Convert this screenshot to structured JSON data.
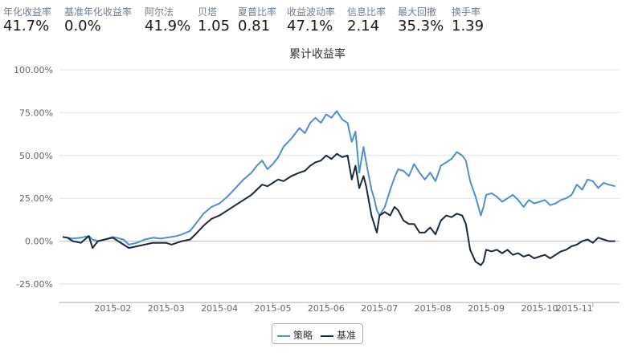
{
  "metrics": [
    {
      "label": "年化收益率",
      "value": "41.7%"
    },
    {
      "label": "基准年化收益率",
      "value": "0.0%"
    },
    {
      "label": "阿尔法",
      "value": "41.9%"
    },
    {
      "label": "贝塔",
      "value": "1.05"
    },
    {
      "label": "夏普比率",
      "value": "0.81"
    },
    {
      "label": "收益波动率",
      "value": "47.1%"
    },
    {
      "label": "信息比率",
      "value": "2.14"
    },
    {
      "label": "最大回撤",
      "value": "35.3%"
    },
    {
      "label": "换手率",
      "value": "1.39"
    }
  ],
  "chart_data": {
    "type": "line",
    "title": "累计收益率",
    "xlabel": "",
    "ylabel": "",
    "ylim": [
      -25,
      100
    ],
    "y_ticks": [
      "100.00%",
      "75.00%",
      "50.00%",
      "25.00%",
      "0.00%",
      "-25.00%"
    ],
    "y_tick_values": [
      100,
      75,
      50,
      25,
      0,
      -25
    ],
    "x_ticks": [
      "2015-02",
      "2015-03",
      "2015-04",
      "2015-05",
      "2015-06",
      "2015-07",
      "2015-08",
      "2015-09",
      "2015-10",
      "2015-11"
    ],
    "x_tick_values": [
      1,
      2,
      3,
      4,
      5,
      6,
      7,
      8,
      9,
      10
    ],
    "xlim": [
      0,
      10.5
    ],
    "grid": "horizontal",
    "legend_position": "bottom-center",
    "series": [
      {
        "name": "策略",
        "color": "#4f8fcf",
        "x": [
          0.06,
          0.15,
          0.25,
          0.4,
          0.55,
          0.62,
          0.72,
          0.85,
          1.0,
          1.2,
          1.3,
          1.45,
          1.6,
          1.75,
          1.9,
          2.0,
          2.1,
          2.2,
          2.3,
          2.45,
          2.55,
          2.7,
          2.85,
          3.0,
          3.15,
          3.3,
          3.45,
          3.6,
          3.7,
          3.8,
          3.9,
          4.0,
          4.1,
          4.2,
          4.35,
          4.5,
          4.6,
          4.7,
          4.8,
          4.9,
          5.0,
          5.1,
          5.2,
          5.3,
          5.4,
          5.48,
          5.55,
          5.62,
          5.7,
          5.75,
          5.85,
          5.9,
          5.95,
          6.0,
          6.1,
          6.2,
          6.28,
          6.35,
          6.45,
          6.55,
          6.65,
          6.75,
          6.85,
          6.95,
          7.05,
          7.15,
          7.25,
          7.35,
          7.45,
          7.55,
          7.62,
          7.7,
          7.8,
          7.9,
          7.95,
          8.0,
          8.1,
          8.2,
          8.3,
          8.4,
          8.5,
          8.6,
          8.7,
          8.8,
          8.9,
          9.0,
          9.1,
          9.2,
          9.3,
          9.4,
          9.5,
          9.6,
          9.7,
          9.8,
          9.9,
          10.0,
          10.1,
          10.2,
          10.3,
          10.42
        ],
        "values": [
          2.5,
          2,
          1.5,
          2,
          3,
          1,
          0,
          1,
          2.5,
          1,
          -2,
          -1,
          1,
          2,
          1.5,
          2,
          2.5,
          3,
          4,
          6,
          10,
          16,
          20,
          22,
          26,
          31,
          36,
          40,
          44,
          47,
          42,
          45,
          49,
          55,
          60,
          66,
          63,
          69,
          72,
          69,
          74,
          72,
          76,
          71,
          69,
          58,
          64,
          40,
          55,
          46,
          30,
          25,
          18,
          15,
          20,
          30,
          37,
          42,
          41,
          38,
          45,
          40,
          36,
          40,
          35,
          44,
          46,
          48,
          52,
          50,
          47,
          35,
          26,
          15,
          20,
          27,
          28,
          26,
          23,
          25,
          27,
          24,
          20,
          24,
          22,
          23,
          24,
          21,
          22,
          24,
          25,
          27,
          33,
          30,
          36,
          35,
          31,
          34,
          33,
          32
        ]
      },
      {
        "name": "基准",
        "color": "#1a2a3a",
        "x": [
          0.06,
          0.15,
          0.25,
          0.4,
          0.55,
          0.62,
          0.72,
          0.85,
          1.0,
          1.2,
          1.3,
          1.45,
          1.6,
          1.75,
          1.9,
          2.0,
          2.1,
          2.2,
          2.3,
          2.45,
          2.55,
          2.7,
          2.85,
          3.0,
          3.15,
          3.3,
          3.45,
          3.6,
          3.7,
          3.8,
          3.9,
          4.0,
          4.1,
          4.2,
          4.35,
          4.5,
          4.6,
          4.7,
          4.8,
          4.9,
          5.0,
          5.1,
          5.2,
          5.3,
          5.4,
          5.48,
          5.55,
          5.62,
          5.7,
          5.75,
          5.85,
          5.9,
          5.95,
          6.0,
          6.1,
          6.2,
          6.28,
          6.35,
          6.45,
          6.55,
          6.65,
          6.75,
          6.85,
          6.95,
          7.05,
          7.15,
          7.25,
          7.35,
          7.45,
          7.55,
          7.62,
          7.7,
          7.8,
          7.9,
          7.95,
          8.0,
          8.1,
          8.2,
          8.3,
          8.4,
          8.5,
          8.6,
          8.7,
          8.8,
          8.9,
          9.0,
          9.1,
          9.2,
          9.3,
          9.4,
          9.5,
          9.6,
          9.7,
          9.8,
          9.9,
          10.0,
          10.1,
          10.2,
          10.3,
          10.42
        ],
        "values": [
          2.5,
          2,
          0,
          -1,
          3,
          -4,
          0,
          1,
          2,
          -2,
          -4,
          -3,
          -2,
          -1,
          -1,
          -1,
          -2,
          -1,
          0,
          1,
          4,
          9,
          13,
          15,
          18,
          21,
          24,
          27,
          30,
          33,
          32,
          34,
          36,
          35,
          38,
          40,
          41,
          44,
          46,
          47,
          50,
          48,
          51,
          49,
          50,
          36,
          44,
          31,
          38,
          32,
          15,
          10,
          5,
          15,
          17,
          15,
          20,
          18,
          12,
          10,
          10,
          5,
          5,
          8,
          4,
          12,
          15,
          14,
          16,
          15,
          10,
          -5,
          -12,
          -14,
          -12,
          -5,
          -6,
          -5,
          -7,
          -5,
          -8,
          -7,
          -9,
          -8,
          -10,
          -9,
          -8,
          -10,
          -8,
          -6,
          -5,
          -3,
          -2,
          0,
          1,
          -1,
          2,
          1,
          0,
          0
        ]
      }
    ]
  }
}
